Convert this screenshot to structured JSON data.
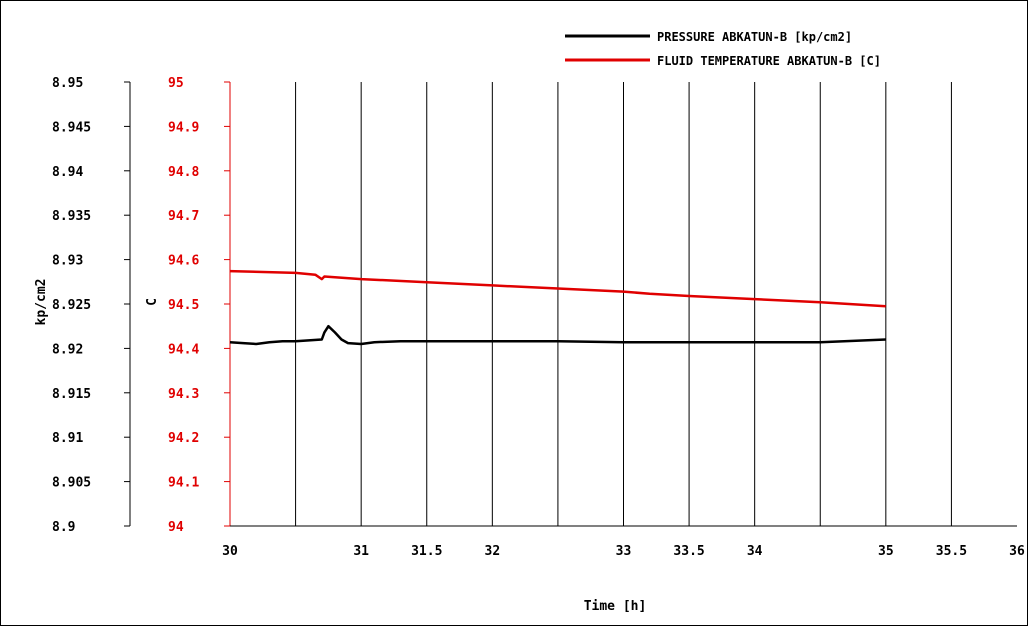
{
  "colors": {
    "pressure": "#000000",
    "temperature": "#e00000",
    "grid": "#000000",
    "background": "#ffffff"
  },
  "chart_data": {
    "type": "line",
    "title": "",
    "xlabel": "Time [h]",
    "ylabel_left": "kp/cm2",
    "ylabel_right": "C",
    "xlim": [
      30,
      36
    ],
    "ylim_left": [
      8.9,
      8.95
    ],
    "ylim_right": [
      94,
      95
    ],
    "x_ticks": [
      "30",
      "31",
      "31.5",
      "32",
      "33",
      "33.5",
      "34",
      "35",
      "35.5",
      "36"
    ],
    "x_tick_values": [
      30,
      31,
      31.5,
      32,
      33,
      33.5,
      34,
      35,
      35.5,
      36
    ],
    "vertical_gridlines": [
      30.5,
      31,
      31.5,
      32,
      32.5,
      33,
      33.5,
      34,
      34.5,
      35,
      35.5
    ],
    "y_left_ticks": [
      "8.95",
      "8.945",
      "8.94",
      "8.935",
      "8.93",
      "8.925",
      "8.92",
      "8.915",
      "8.91",
      "8.905",
      "8.9"
    ],
    "y_right_ticks": [
      "95",
      "94.9",
      "94.8",
      "94.7",
      "94.6",
      "94.5",
      "94.4",
      "94.3",
      "94.2",
      "94.1",
      "94"
    ],
    "legend_position": "top-right",
    "series": [
      {
        "name": "PRESSURE ABKATUN-B [kp/cm2]",
        "axis": "left",
        "color": "#000000",
        "x": [
          30.0,
          30.1,
          30.2,
          30.3,
          30.4,
          30.5,
          30.6,
          30.7,
          30.72,
          30.75,
          30.8,
          30.85,
          30.9,
          31.0,
          31.1,
          31.3,
          31.5,
          31.8,
          32.0,
          32.5,
          33.0,
          33.5,
          34.0,
          34.5,
          35.0
        ],
        "values": [
          8.9207,
          8.9206,
          8.9205,
          8.9207,
          8.9208,
          8.9208,
          8.9209,
          8.921,
          8.9218,
          8.9225,
          8.9218,
          8.921,
          8.9206,
          8.9205,
          8.9207,
          8.9208,
          8.9208,
          8.9208,
          8.9208,
          8.9208,
          8.9207,
          8.9207,
          8.9207,
          8.9207,
          8.921
        ]
      },
      {
        "name": "FLUID TEMPERATURE ABKATUN-B [C]",
        "axis": "right",
        "color": "#e00000",
        "x": [
          30.0,
          30.5,
          30.65,
          30.7,
          30.72,
          31.0,
          31.5,
          32.0,
          32.5,
          33.0,
          33.2,
          33.5,
          34.0,
          34.5,
          35.0
        ],
        "values": [
          94.574,
          94.57,
          94.566,
          94.556,
          94.562,
          94.556,
          94.549,
          94.542,
          94.535,
          94.528,
          94.523,
          94.518,
          94.511,
          94.504,
          94.495
        ]
      }
    ]
  }
}
